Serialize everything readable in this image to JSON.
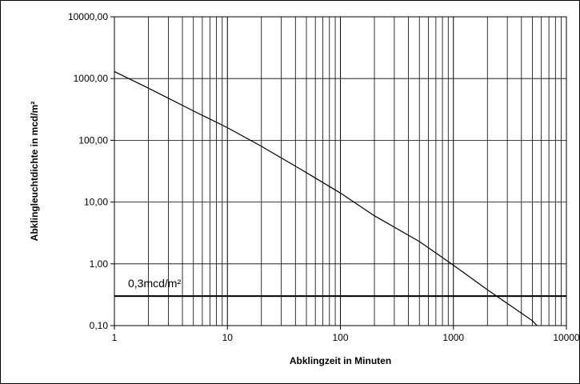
{
  "chart_data": {
    "type": "line",
    "xlabel": "Abklingzeit in Minuten",
    "ylabel": "Abklingleuchtdichte in mcd/m²",
    "xscale": "log",
    "yscale": "log",
    "xlim": [
      1,
      10000
    ],
    "ylim": [
      0.1,
      10000
    ],
    "grid": true,
    "x_ticks": [
      "1",
      "10",
      "100",
      "1000",
      "10000"
    ],
    "y_ticks": [
      "0,10",
      "1,00",
      "10,00",
      "100,00",
      "1000,00",
      "10000,00"
    ],
    "series": [
      {
        "x": [
          1,
          2,
          5,
          10,
          20,
          50,
          100,
          200,
          500,
          1000,
          2000,
          5000,
          5500
        ],
        "y": [
          1300,
          700,
          300,
          160,
          80,
          30,
          14,
          6,
          2.3,
          0.95,
          0.38,
          0.12,
          0.1
        ]
      }
    ],
    "threshold": {
      "value": 0.3,
      "label": "0,3mcd/m²"
    }
  }
}
